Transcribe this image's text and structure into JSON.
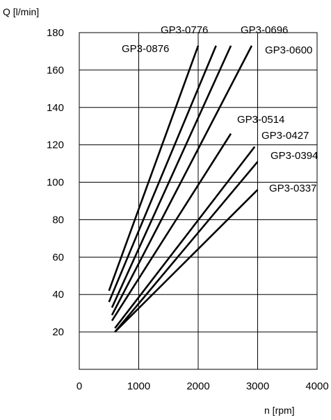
{
  "chart_data": {
    "type": "line",
    "title": "",
    "xlabel": "n [rpm]",
    "ylabel": "Q [l/min]",
    "xlim": [
      0,
      4000
    ],
    "ylim": [
      0,
      180
    ],
    "x_ticks": [
      0,
      1000,
      2000,
      3000,
      4000
    ],
    "y_ticks": [
      20,
      40,
      60,
      80,
      100,
      120,
      140,
      160,
      180
    ],
    "grid": true,
    "series": [
      {
        "name": "GP3-0876",
        "x": [
          500,
          2000
        ],
        "y": [
          42,
          173
        ]
      },
      {
        "name": "GP3-0776",
        "x": [
          500,
          2300
        ],
        "y": [
          36,
          173
        ]
      },
      {
        "name": "GP3-0696",
        "x": [
          550,
          2550
        ],
        "y": [
          33,
          173
        ]
      },
      {
        "name": "GP3-0600",
        "x": [
          550,
          2900
        ],
        "y": [
          29,
          173
        ]
      },
      {
        "name": "GP3-0514",
        "x": [
          550,
          2550
        ],
        "y": [
          26,
          126
        ]
      },
      {
        "name": "GP3-0427",
        "x": [
          600,
          2950
        ],
        "y": [
          22,
          119
        ]
      },
      {
        "name": "GP3-0394",
        "x": [
          600,
          3000
        ],
        "y": [
          20,
          111
        ]
      },
      {
        "name": "GP3-0337",
        "x": [
          600,
          3000
        ],
        "y": [
          20,
          96
        ]
      }
    ]
  }
}
